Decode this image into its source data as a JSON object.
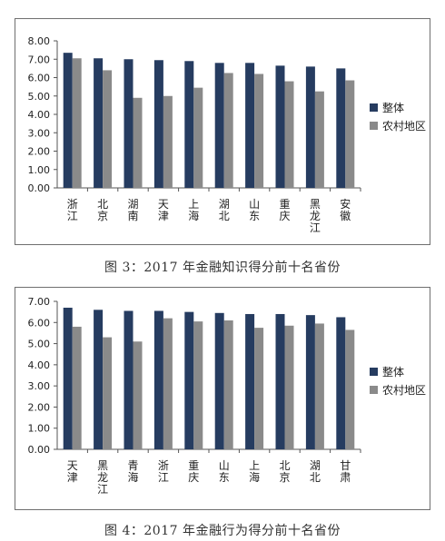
{
  "chart_data": [
    {
      "type": "bar",
      "categories": [
        "浙江",
        "北京",
        "湖南",
        "天津",
        "上海",
        "湖北",
        "山东",
        "重庆",
        "黑龙江",
        "安徽"
      ],
      "series": [
        {
          "name": "整体",
          "color": "#263c60",
          "values": [
            7.35,
            7.05,
            7.0,
            6.95,
            6.9,
            6.8,
            6.8,
            6.65,
            6.6,
            6.5
          ]
        },
        {
          "name": "农村地区",
          "color": "#8a8a8a",
          "values": [
            7.05,
            6.4,
            4.9,
            5.0,
            5.45,
            6.25,
            6.2,
            5.8,
            5.25,
            5.85
          ]
        }
      ],
      "ylim": [
        0,
        8
      ],
      "yticks": [
        "0.00",
        "1.00",
        "2.00",
        "3.00",
        "4.00",
        "5.00",
        "6.00",
        "7.00",
        "8.00"
      ],
      "legend": "right",
      "grid": false,
      "caption": "图 3：2017 年金融知识得分前十名省份"
    },
    {
      "type": "bar",
      "categories": [
        "天津",
        "黑龙江",
        "青海",
        "浙江",
        "重庆",
        "山东",
        "上海",
        "北京",
        "湖北",
        "甘肃"
      ],
      "series": [
        {
          "name": "整体",
          "color": "#263c60",
          "values": [
            6.7,
            6.6,
            6.55,
            6.55,
            6.5,
            6.45,
            6.4,
            6.4,
            6.35,
            6.25
          ]
        },
        {
          "name": "农村地区",
          "color": "#8a8a8a",
          "values": [
            5.8,
            5.3,
            5.1,
            6.2,
            6.05,
            6.1,
            5.75,
            5.85,
            5.95,
            5.65
          ]
        }
      ],
      "ylim": [
        0,
        7
      ],
      "yticks": [
        "0.00",
        "1.00",
        "2.00",
        "3.00",
        "4.00",
        "5.00",
        "6.00",
        "7.00"
      ],
      "legend": "right",
      "grid": false,
      "caption": "图 4：2017 年金融行为得分前十名省份"
    }
  ]
}
